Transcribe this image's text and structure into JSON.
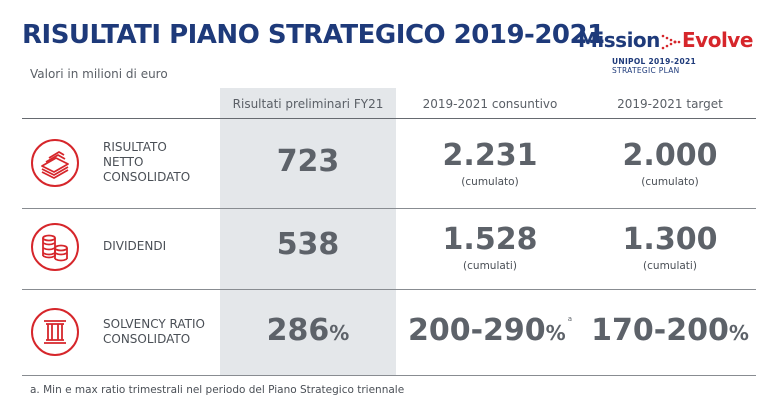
{
  "title": "RISULTATI PIANO STRATEGICO 2019-2021",
  "subtitle": "Valori in milioni di euro",
  "logo": {
    "word1": "Mission",
    "word2": "Evolve",
    "line1": "UNIPOL 2019-2021",
    "line2": "STRATEGIC PLAN"
  },
  "headers": [
    "Risultati preliminari FY21",
    "2019-2021 consuntivo",
    "2019-2021 target"
  ],
  "rows": [
    {
      "label_lines": [
        "RISULTATO",
        "NETTO",
        "CONSOLIDATO"
      ],
      "icon": "money-stack-icon",
      "fy21": "723",
      "consuntivo": "2.231",
      "consuntivo_note": "(cumulato)",
      "target": "2.000",
      "target_note": "(cumulato)"
    },
    {
      "label_lines": [
        "DIVIDENDI"
      ],
      "icon": "coins-icon",
      "fy21": "538",
      "consuntivo": "1.528",
      "consuntivo_note": "(cumulati)",
      "target": "1.300",
      "target_note": "(cumulati)"
    },
    {
      "label_lines": [
        "SOLVENCY RATIO",
        "CONSOLIDATO"
      ],
      "icon": "pillar-icon",
      "fy21": "286",
      "fy21_unit": "%",
      "consuntivo": "200-290",
      "consuntivo_unit": "%",
      "consuntivo_sup": "a",
      "target": "170-200",
      "target_unit": "%"
    }
  ],
  "footnote": "a. Min e max ratio trimestrali nel periodo del Piano Strategico triennale",
  "colors": {
    "brand_blue": "#1e3a7a",
    "brand_red": "#d6262b",
    "highlight_bg": "#e4e7ea",
    "text": "#5d6269"
  }
}
